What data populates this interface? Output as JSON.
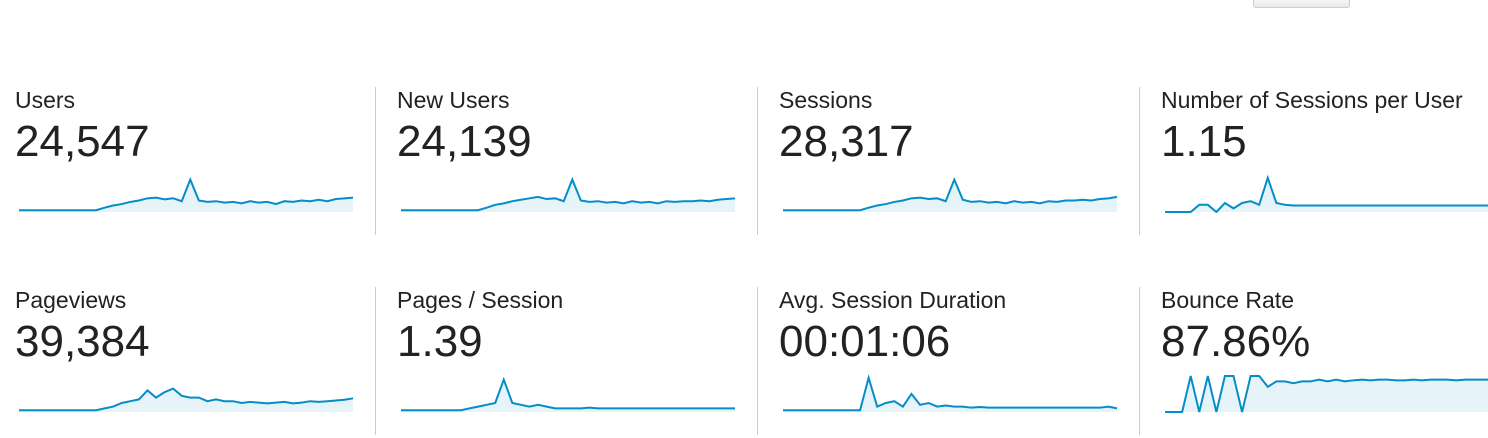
{
  "metrics": [
    {
      "label": "Users",
      "value": "24,547",
      "sparkline": [
        5,
        5,
        5,
        5,
        5,
        5,
        5,
        5,
        5,
        5,
        12,
        18,
        22,
        28,
        32,
        38,
        40,
        35,
        38,
        30,
        90,
        32,
        28,
        30,
        26,
        28,
        24,
        30,
        26,
        28,
        22,
        30,
        28,
        32,
        30,
        34,
        30,
        36,
        38,
        40
      ]
    },
    {
      "label": "New Users",
      "value": "24,139",
      "sparkline": [
        5,
        5,
        5,
        5,
        5,
        5,
        5,
        5,
        5,
        5,
        12,
        20,
        24,
        30,
        34,
        38,
        42,
        36,
        38,
        30,
        90,
        32,
        28,
        30,
        26,
        28,
        24,
        30,
        26,
        28,
        24,
        30,
        28,
        30,
        30,
        32,
        30,
        34,
        36,
        38
      ]
    },
    {
      "label": "Sessions",
      "value": "28,317",
      "sparkline": [
        5,
        5,
        5,
        5,
        5,
        5,
        5,
        5,
        5,
        5,
        12,
        18,
        22,
        28,
        32,
        38,
        40,
        36,
        38,
        30,
        90,
        34,
        28,
        30,
        26,
        28,
        24,
        30,
        26,
        28,
        24,
        30,
        28,
        32,
        32,
        34,
        32,
        36,
        38,
        42
      ]
    },
    {
      "label": "Number of Sessions per User",
      "value": "1.15",
      "sparkline": [
        0,
        0,
        0,
        0,
        20,
        20,
        0,
        25,
        10,
        25,
        30,
        20,
        95,
        25,
        20,
        18,
        18,
        18,
        18,
        18,
        18,
        18,
        18,
        18,
        18,
        18,
        18,
        18,
        18,
        18,
        18,
        18,
        18,
        18,
        18,
        18,
        18,
        18,
        18,
        18
      ]
    },
    {
      "label": "Pageviews",
      "value": "39,384",
      "sparkline": [
        5,
        5,
        5,
        5,
        5,
        5,
        5,
        5,
        5,
        5,
        10,
        15,
        25,
        30,
        35,
        60,
        40,
        55,
        65,
        45,
        40,
        40,
        30,
        35,
        30,
        30,
        25,
        28,
        26,
        24,
        26,
        28,
        24,
        26,
        30,
        28,
        30,
        32,
        34,
        38
      ]
    },
    {
      "label": "Pages / Session",
      "value": "1.39",
      "sparkline": [
        5,
        5,
        5,
        5,
        5,
        5,
        5,
        5,
        10,
        15,
        20,
        25,
        90,
        25,
        20,
        15,
        20,
        15,
        10,
        10,
        10,
        10,
        12,
        10,
        10,
        10,
        10,
        10,
        10,
        10,
        10,
        10,
        10,
        10,
        10,
        10,
        10,
        10,
        10,
        10
      ]
    },
    {
      "label": "Avg. Session Duration",
      "value": "00:01:06",
      "sparkline": [
        5,
        5,
        5,
        5,
        5,
        5,
        5,
        5,
        5,
        5,
        95,
        15,
        25,
        30,
        15,
        50,
        20,
        25,
        15,
        18,
        15,
        15,
        12,
        14,
        12,
        12,
        12,
        12,
        12,
        12,
        12,
        12,
        12,
        12,
        12,
        12,
        12,
        12,
        15,
        10
      ]
    },
    {
      "label": "Bounce Rate",
      "value": "87.86%",
      "sparkline": [
        0,
        0,
        0,
        100,
        0,
        100,
        0,
        100,
        100,
        0,
        100,
        100,
        70,
        85,
        85,
        80,
        85,
        85,
        90,
        85,
        90,
        85,
        88,
        90,
        88,
        90,
        90,
        88,
        88,
        90,
        88,
        90,
        90,
        90,
        88,
        90,
        90,
        90,
        90,
        90
      ]
    }
  ]
}
